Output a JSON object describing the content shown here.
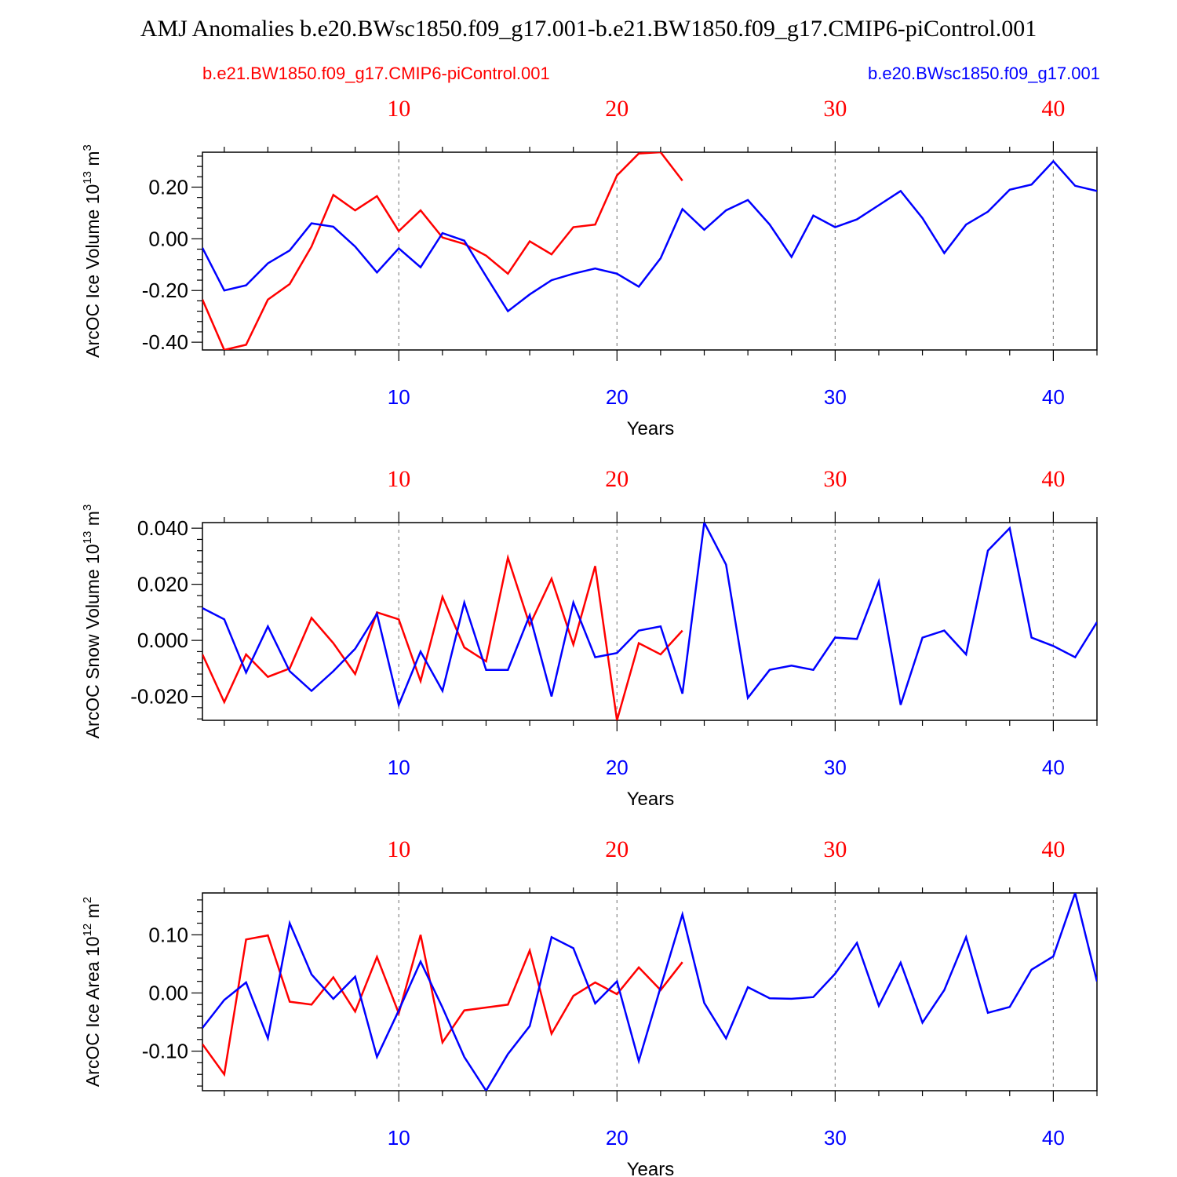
{
  "title": "AMJ Anomalies b.e20.BWsc1850.f09_g17.001-b.e21.BW1850.f09_g17.CMIP6-piControl.001",
  "legend_left": "b.e21.BW1850.f09_g17.CMIP6-piControl.001",
  "legend_right": "b.e20.BWsc1850.f09_g17.001",
  "colors": {
    "ctrl": "#ff0000",
    "exp": "#0000ff",
    "axis": "#000000",
    "grid": "#888888"
  },
  "chart_data": [
    {
      "type": "line",
      "ylabel": "ArcOC Ice Volume 10",
      "ylabel_exp": "13",
      "ylabel_unit": " m",
      "ylabel_unit_exp": "3",
      "xlabel": "Years",
      "xlim": [
        1,
        42
      ],
      "ylim": [
        -0.43,
        0.335
      ],
      "yticks": [
        -0.4,
        -0.2,
        0.0,
        0.2
      ],
      "yticklabels": [
        "-0.40",
        "-0.20",
        "0.00",
        "0.20"
      ],
      "yminor": 0.04,
      "xticks": [
        10,
        20,
        30,
        40
      ],
      "xticklabels": [
        "10",
        "20",
        "30",
        "40"
      ],
      "series": [
        {
          "name": "b.e21.BW1850.f09_g17.CMIP6-piControl.001",
          "color": "#ff0000",
          "values": [
            -0.235,
            -0.43,
            -0.41,
            -0.235,
            -0.175,
            -0.03,
            0.17,
            0.11,
            0.165,
            0.03,
            0.11,
            0.005,
            -0.02,
            -0.065,
            -0.135,
            -0.01,
            -0.06,
            0.045,
            0.055,
            0.245,
            0.33,
            0.335,
            0.225
          ]
        },
        {
          "name": "b.e20.BWsc1850.f09_g17.001",
          "color": "#0000ff",
          "values": [
            -0.035,
            -0.2,
            -0.18,
            -0.095,
            -0.045,
            0.06,
            0.047,
            -0.03,
            -0.13,
            -0.037,
            -0.11,
            0.022,
            -0.007,
            -0.145,
            -0.28,
            -0.215,
            -0.16,
            -0.135,
            -0.115,
            -0.135,
            -0.185,
            -0.075,
            0.115,
            0.035,
            0.11,
            0.15,
            0.055,
            -0.07,
            0.09,
            0.045,
            0.075,
            0.13,
            0.185,
            0.08,
            -0.055,
            0.055,
            0.105,
            0.19,
            0.21,
            0.3,
            0.205,
            0.185
          ]
        }
      ]
    },
    {
      "type": "line",
      "ylabel": "ArcOC Snow Volume 10",
      "ylabel_exp": "13",
      "ylabel_unit": " m",
      "ylabel_unit_exp": "3",
      "xlabel": "Years",
      "xlim": [
        1,
        42
      ],
      "ylim": [
        -0.0285,
        0.042
      ],
      "yticks": [
        -0.02,
        0.0,
        0.02,
        0.04
      ],
      "yticklabels": [
        "-0.020",
        "0.000",
        "0.020",
        "0.040"
      ],
      "yminor": 0.004,
      "xticks": [
        10,
        20,
        30,
        40
      ],
      "xticklabels": [
        "10",
        "20",
        "30",
        "40"
      ],
      "series": [
        {
          "name": "b.e21.BW1850.f09_g17.CMIP6-piControl.001",
          "color": "#ff0000",
          "values": [
            -0.005,
            -0.022,
            -0.005,
            -0.013,
            -0.01,
            0.008,
            -0.001,
            -0.012,
            0.01,
            0.0075,
            -0.0145,
            0.0155,
            -0.0025,
            -0.0075,
            0.0295,
            0.0055,
            0.022,
            -0.0015,
            0.0265,
            -0.0285,
            -0.001,
            -0.005,
            0.0035
          ]
        },
        {
          "name": "b.e20.BWsc1850.f09_g17.001",
          "color": "#0000ff",
          "values": [
            0.0115,
            0.0075,
            -0.0115,
            0.005,
            -0.011,
            -0.018,
            -0.011,
            -0.003,
            0.0095,
            -0.023,
            -0.004,
            -0.018,
            0.0135,
            -0.0105,
            -0.0105,
            0.009,
            -0.02,
            0.0135,
            -0.006,
            -0.0045,
            0.0035,
            0.005,
            -0.019,
            0.042,
            0.027,
            -0.0205,
            -0.0105,
            -0.009,
            -0.0105,
            0.001,
            0.0005,
            0.021,
            -0.023,
            0.001,
            0.0035,
            -0.005,
            0.032,
            0.04,
            0.001,
            -0.002,
            -0.006,
            0.0065
          ]
        }
      ]
    },
    {
      "type": "line",
      "ylabel": "ArcOC Ice Area 10",
      "ylabel_exp": "12",
      "ylabel_unit": " m",
      "ylabel_unit_exp": "2",
      "xlabel": "Years",
      "xlim": [
        1,
        42
      ],
      "ylim": [
        -0.168,
        0.172
      ],
      "yticks": [
        -0.1,
        0.0,
        0.1
      ],
      "yticklabels": [
        "-0.10",
        "0.00",
        "0.10"
      ],
      "yminor": 0.02,
      "xticks": [
        10,
        20,
        30,
        40
      ],
      "xticklabels": [
        "10",
        "20",
        "30",
        "40"
      ],
      "series": [
        {
          "name": "b.e21.BW1850.f09_g17.CMIP6-piControl.001",
          "color": "#ff0000",
          "values": [
            -0.088,
            -0.14,
            0.092,
            0.099,
            -0.015,
            -0.02,
            0.027,
            -0.032,
            0.062,
            -0.035,
            0.1,
            -0.085,
            -0.03,
            -0.025,
            -0.02,
            0.073,
            -0.07,
            -0.005,
            0.018,
            -0.002,
            0.044,
            0.005,
            0.053
          ]
        },
        {
          "name": "b.e20.BWsc1850.f09_g17.001",
          "color": "#0000ff",
          "values": [
            -0.06,
            -0.012,
            0.018,
            -0.078,
            0.12,
            0.032,
            -0.01,
            0.028,
            -0.11,
            -0.03,
            0.054,
            -0.025,
            -0.11,
            -0.168,
            -0.105,
            -0.057,
            0.096,
            0.077,
            -0.018,
            0.02,
            -0.117,
            0.01,
            0.135,
            -0.017,
            -0.078,
            0.01,
            -0.009,
            -0.01,
            -0.007,
            0.033,
            0.086,
            -0.022,
            0.052,
            -0.051,
            0.005,
            0.096,
            -0.034,
            -0.024,
            0.04,
            0.063,
            0.172,
            0.02
          ]
        }
      ]
    }
  ]
}
